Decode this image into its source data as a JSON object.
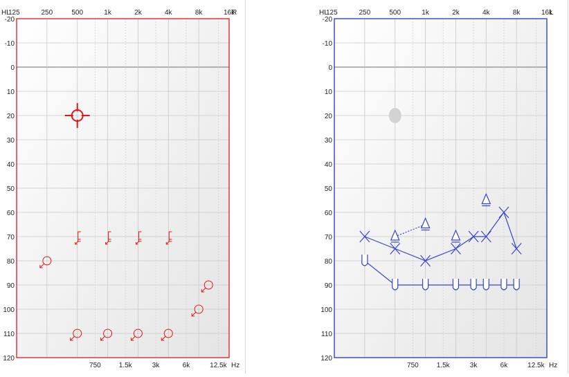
{
  "audiograms": [
    {
      "id": "right",
      "ear_label": "R",
      "hl_label": "HL",
      "hz_label": "Hz",
      "frame_color": "#e0181c",
      "symbol_color": "#e0181c",
      "top_freqs": [
        "125",
        "250",
        "500",
        "1k",
        "2k",
        "4k",
        "8k",
        "16k"
      ],
      "bottom_freqs": [
        "750",
        "1.5k",
        "3k",
        "6k",
        "12.5k"
      ],
      "db_ticks": [
        "-20",
        "-10",
        "0",
        "10",
        "20",
        "30",
        "40",
        "50",
        "60",
        "70",
        "80",
        "90",
        "100",
        "110",
        "120"
      ],
      "marks": [
        {
          "type": "target",
          "freq": 500,
          "db": 20
        },
        {
          "type": "bracket-arrow",
          "freq": 500,
          "db": 70
        },
        {
          "type": "bracket-arrow",
          "freq": 1000,
          "db": 70
        },
        {
          "type": "bracket-arrow",
          "freq": 2000,
          "db": 70
        },
        {
          "type": "bracket-arrow",
          "freq": 4000,
          "db": 70
        },
        {
          "type": "circle-arrow",
          "freq": 250,
          "db": 80
        },
        {
          "type": "circle-arrow",
          "freq": 10000,
          "db": 90
        },
        {
          "type": "circle-arrow",
          "freq": 8000,
          "db": 100
        },
        {
          "type": "circle-arrow",
          "freq": 500,
          "db": 110
        },
        {
          "type": "circle-arrow",
          "freq": 1000,
          "db": 110
        },
        {
          "type": "circle-arrow",
          "freq": 2000,
          "db": 110
        },
        {
          "type": "circle-arrow",
          "freq": 4000,
          "db": 110
        }
      ],
      "lines": []
    },
    {
      "id": "left",
      "ear_label": "L",
      "hl_label": "HL",
      "hz_label": "Hz",
      "frame_color": "#2233cc",
      "symbol_color": "#3a44c8",
      "top_freqs": [
        "125",
        "250",
        "500",
        "1k",
        "2k",
        "4k",
        "8k",
        "16k"
      ],
      "bottom_freqs": [
        "750",
        "1.5k",
        "3k",
        "6k",
        "12.5k"
      ],
      "db_ticks": [
        "-20",
        "-10",
        "0",
        "10",
        "20",
        "30",
        "40",
        "50",
        "60",
        "70",
        "80",
        "90",
        "100",
        "110",
        "120"
      ],
      "marks": [
        {
          "type": "dot",
          "freq": 500,
          "db": 20
        },
        {
          "type": "x",
          "freq": 250,
          "db": 70
        },
        {
          "type": "x",
          "freq": 500,
          "db": 75
        },
        {
          "type": "x",
          "freq": 1000,
          "db": 80
        },
        {
          "type": "x",
          "freq": 2000,
          "db": 75
        },
        {
          "type": "x",
          "freq": 3000,
          "db": 70
        },
        {
          "type": "x",
          "freq": 4000,
          "db": 70
        },
        {
          "type": "x",
          "freq": 6000,
          "db": 60
        },
        {
          "type": "x",
          "freq": 8000,
          "db": 75
        },
        {
          "type": "triangle",
          "freq": 500,
          "db": 70
        },
        {
          "type": "triangle",
          "freq": 1000,
          "db": 65
        },
        {
          "type": "triangle",
          "freq": 2000,
          "db": 70
        },
        {
          "type": "triangle",
          "freq": 4000,
          "db": 55
        },
        {
          "type": "u",
          "freq": 250,
          "db": 80
        },
        {
          "type": "u",
          "freq": 500,
          "db": 90
        },
        {
          "type": "u",
          "freq": 1000,
          "db": 90
        },
        {
          "type": "u",
          "freq": 2000,
          "db": 90
        },
        {
          "type": "u",
          "freq": 3000,
          "db": 90
        },
        {
          "type": "u",
          "freq": 4000,
          "db": 90
        },
        {
          "type": "u",
          "freq": 6000,
          "db": 90
        },
        {
          "type": "u",
          "freq": 8000,
          "db": 90
        }
      ],
      "lines": [
        {
          "style": "solid",
          "points": [
            [
              250,
              70
            ],
            [
              500,
              75
            ],
            [
              1000,
              80
            ],
            [
              2000,
              75
            ],
            [
              3000,
              70
            ],
            [
              4000,
              70
            ],
            [
              6000,
              60
            ],
            [
              8000,
              75
            ]
          ]
        },
        {
          "style": "dotted",
          "points": [
            [
              500,
              70
            ],
            [
              1000,
              65
            ]
          ]
        },
        {
          "style": "solid",
          "points": [
            [
              250,
              80
            ],
            [
              500,
              90
            ],
            [
              1000,
              90
            ],
            [
              2000,
              90
            ],
            [
              3000,
              90
            ],
            [
              4000,
              90
            ],
            [
              6000,
              90
            ],
            [
              8000,
              90
            ]
          ]
        }
      ]
    }
  ]
}
